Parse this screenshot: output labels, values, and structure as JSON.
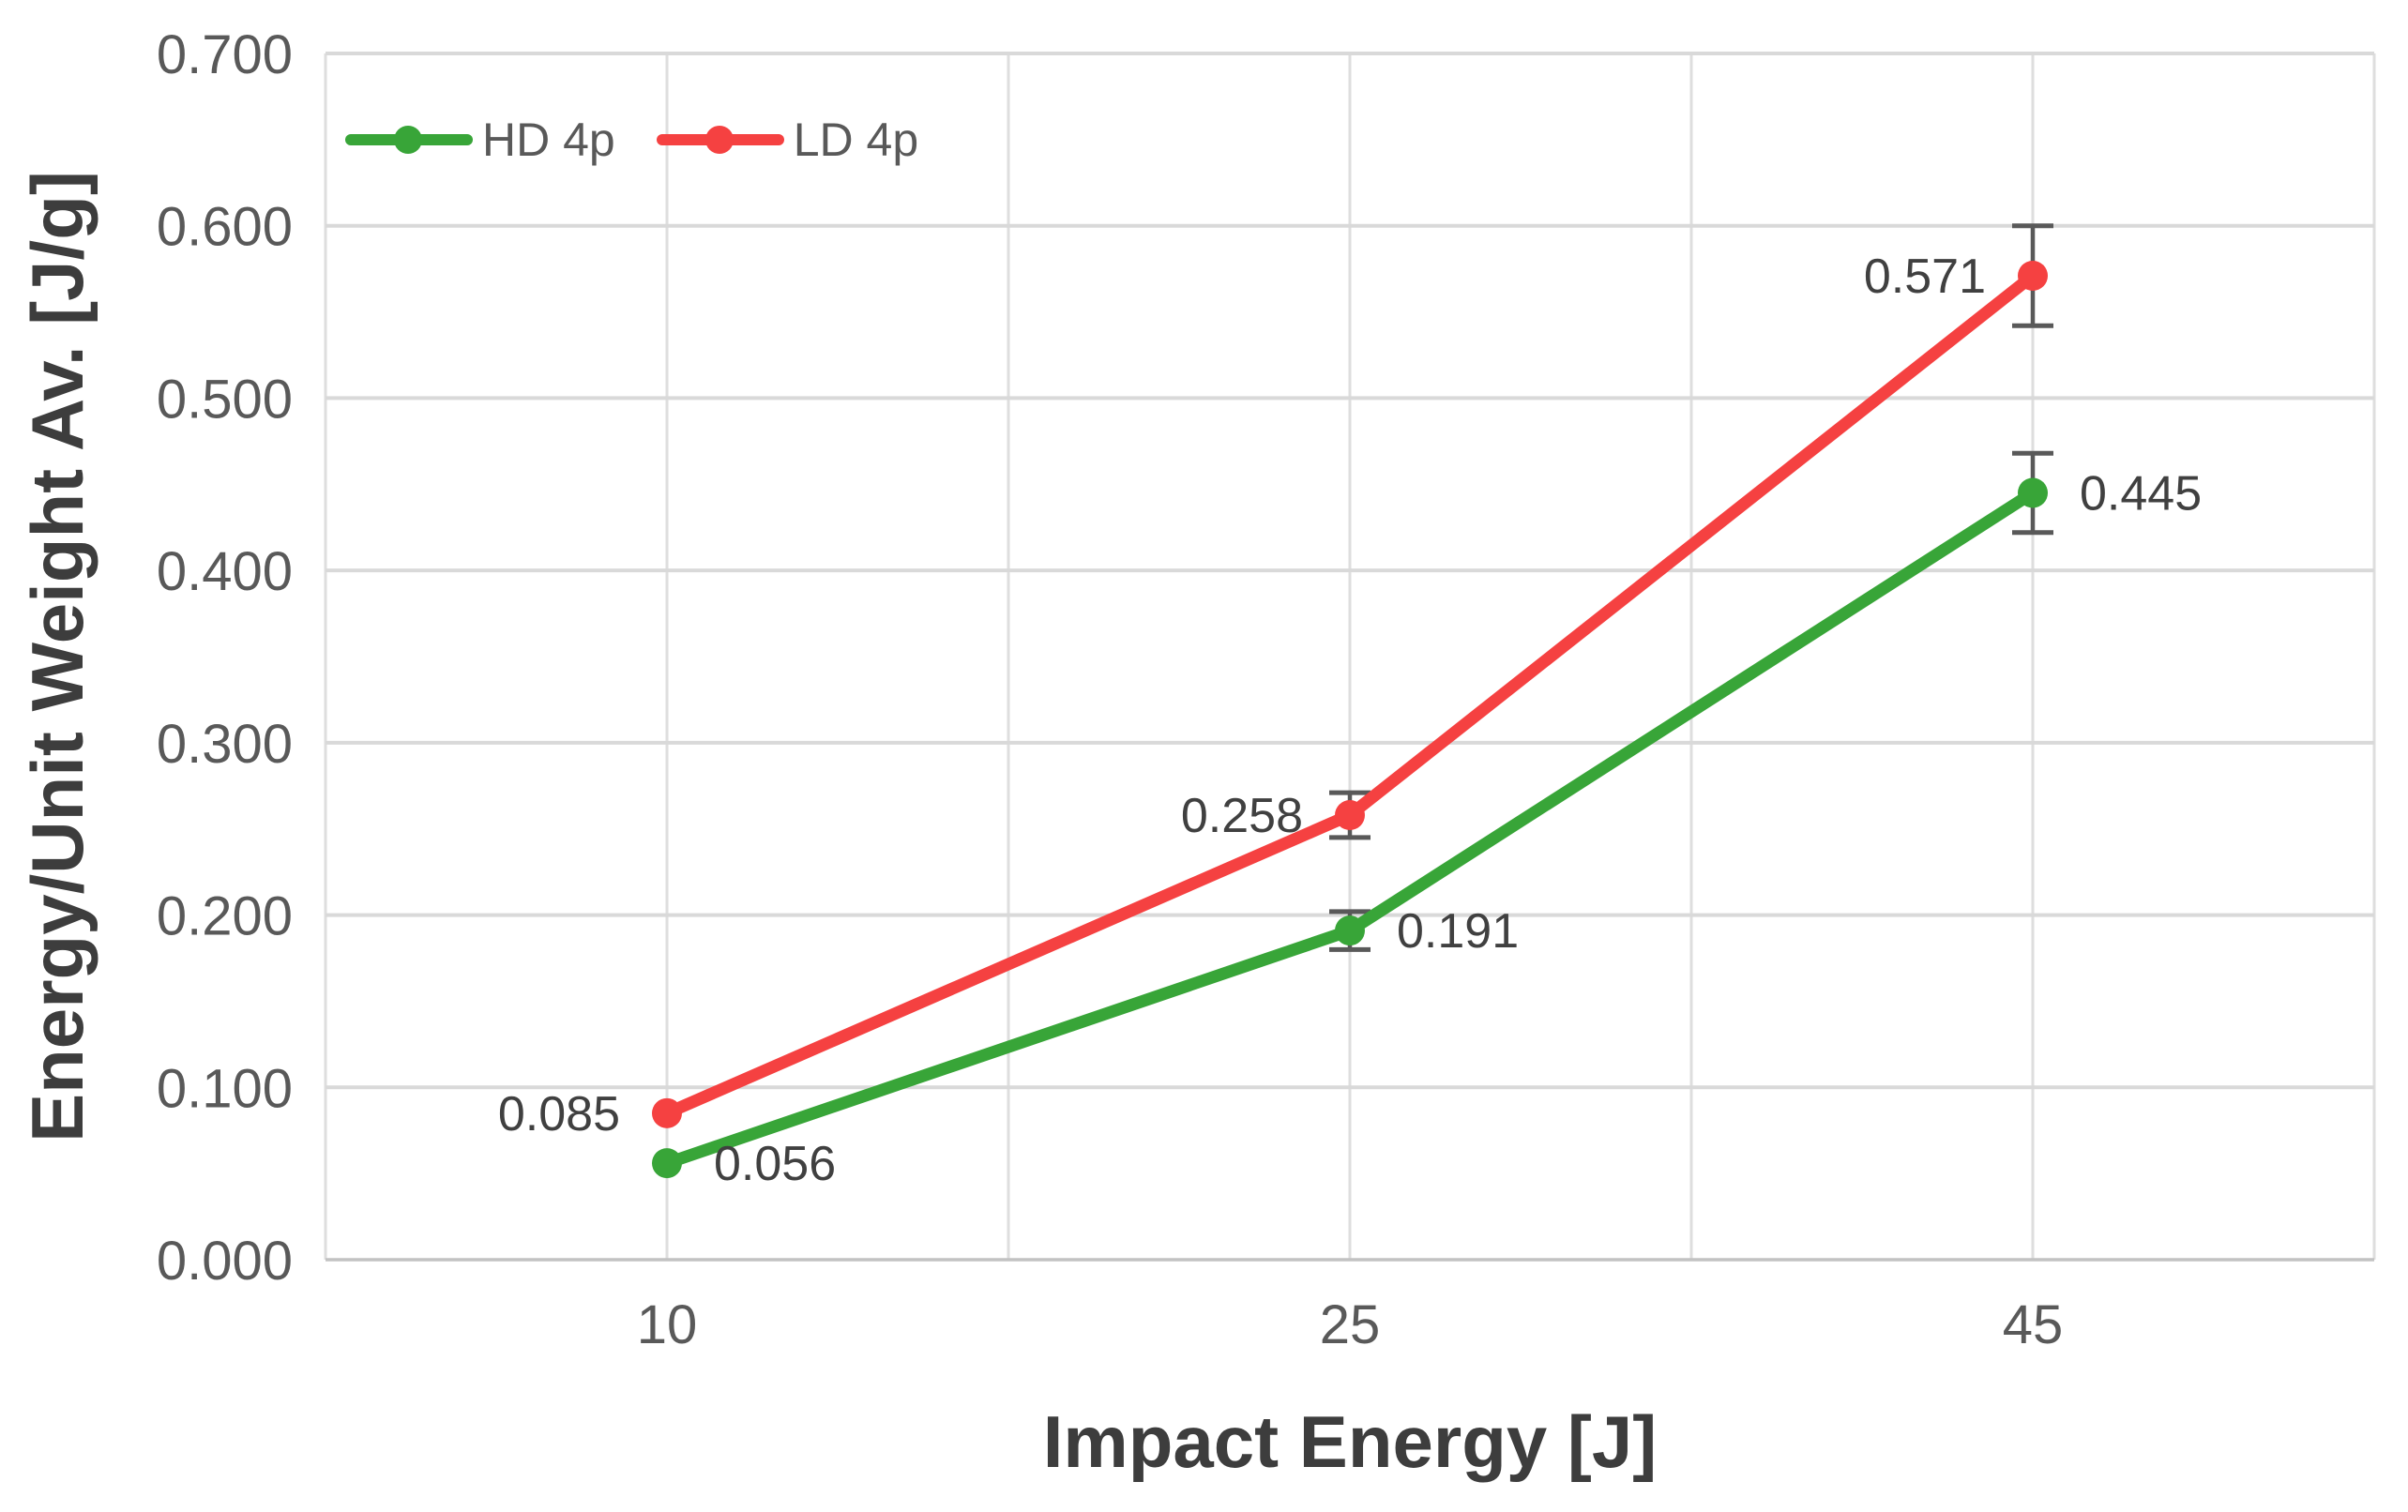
{
  "figure": {
    "background": "#ffffff"
  },
  "chart_data": {
    "type": "line",
    "title": "",
    "xlabel": "Impact Energy [J]",
    "ylabel": "Energy/Unit Weight Av. [J/g]",
    "categories": [
      "10",
      "25",
      "45"
    ],
    "ylim": [
      0.0,
      0.7
    ],
    "y_tick_step": 0.1,
    "y_tick_labels": [
      "0.000",
      "0.100",
      "0.200",
      "0.300",
      "0.400",
      "0.500",
      "0.600",
      "0.700"
    ],
    "grid": {
      "horizontal": true,
      "vertical": true,
      "color": "#d9d9d9"
    },
    "legend": {
      "position": "top-left-inside",
      "items": [
        "HD 4p",
        "LD 4p"
      ]
    },
    "series": [
      {
        "name": "HD 4p",
        "color": "#38a538",
        "values": [
          0.056,
          0.191,
          0.445
        ],
        "data_labels": [
          "0.056",
          "0.191",
          "0.445"
        ],
        "label_side": "right",
        "error_bars": [
          0,
          0.011,
          0.023
        ]
      },
      {
        "name": "LD 4p",
        "color": "#f54141",
        "values": [
          0.085,
          0.258,
          0.571
        ],
        "data_labels": [
          "0.085",
          "0.258",
          "0.571"
        ],
        "label_side": "left",
        "error_bars": [
          0,
          0.013,
          0.029
        ]
      }
    ],
    "error_bar_color": "#595959",
    "axis_line_color": "#c2c2c2",
    "tick_label_color": "#595959",
    "data_label_color": "#404040",
    "title_color": "#3d3d3d"
  }
}
